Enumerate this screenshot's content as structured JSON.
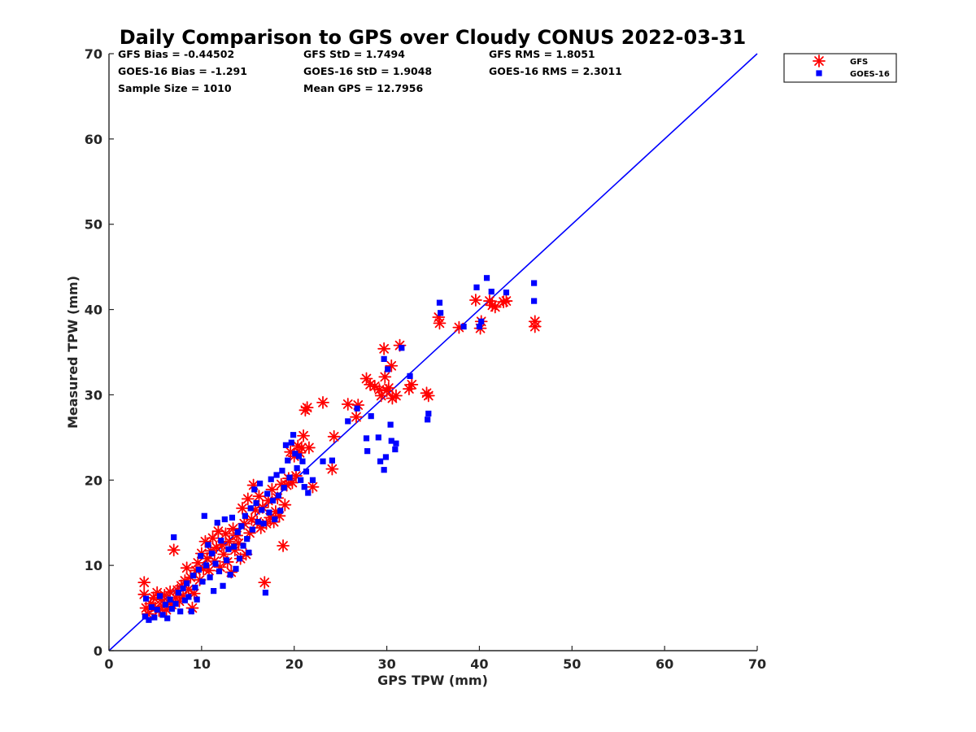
{
  "chart_data": {
    "type": "scatter",
    "title": "Daily Comparison to GPS over Cloudy CONUS 2022-03-31",
    "xlabel": "GPS TPW (mm)",
    "ylabel": "Measured TPW (mm)",
    "xlim": [
      0,
      70
    ],
    "ylim": [
      0,
      70
    ],
    "x_ticks": [
      "0",
      "10",
      "20",
      "30",
      "40",
      "50",
      "60",
      "70"
    ],
    "y_ticks": [
      "0",
      "10",
      "20",
      "30",
      "40",
      "50",
      "60",
      "70"
    ],
    "grid": false,
    "legend_placement": "outside-top-right",
    "reference_line": {
      "type": "1:1",
      "color": "#0000ff",
      "points": [
        [
          0,
          0
        ],
        [
          70,
          70
        ]
      ]
    },
    "stats": [
      "GFS Bias = -0.44502",
      "GFS StD = 1.7494",
      "GFS RMS = 1.8051",
      "GOES-16 Bias = -1.291",
      "GOES-16 StD = 1.9048",
      "GOES-16 RMS = 2.3011",
      "Sample Size = 1010",
      "Mean GPS = 12.7956"
    ],
    "series": [
      {
        "name": "GFS",
        "marker": "asterisk",
        "color": "#ff0000",
        "points": [
          [
            3.8,
            8.0
          ],
          [
            3.8,
            6.6
          ],
          [
            4.0,
            5.0
          ],
          [
            4.2,
            4.3
          ],
          [
            4.5,
            5.5
          ],
          [
            4.8,
            6.2
          ],
          [
            5.0,
            5.0
          ],
          [
            5.2,
            6.8
          ],
          [
            5.4,
            4.7
          ],
          [
            5.6,
            6.0
          ],
          [
            5.8,
            5.2
          ],
          [
            6.0,
            6.5
          ],
          [
            6.2,
            4.8
          ],
          [
            6.4,
            5.7
          ],
          [
            6.6,
            6.9
          ],
          [
            6.8,
            5.4
          ],
          [
            7.0,
            11.8
          ],
          [
            7.2,
            6.2
          ],
          [
            7.4,
            7.1
          ],
          [
            7.6,
            5.8
          ],
          [
            7.8,
            7.6
          ],
          [
            8.0,
            6.4
          ],
          [
            8.2,
            8.2
          ],
          [
            8.4,
            9.7
          ],
          [
            8.6,
            7.2
          ],
          [
            8.8,
            8.6
          ],
          [
            9.0,
            5.0
          ],
          [
            9.2,
            6.7
          ],
          [
            9.4,
            9.4
          ],
          [
            9.6,
            10.3
          ],
          [
            9.8,
            8.3
          ],
          [
            10.0,
            11.4
          ],
          [
            10.2,
            9.6
          ],
          [
            10.4,
            12.8
          ],
          [
            10.6,
            10.8
          ],
          [
            10.8,
            9.4
          ],
          [
            11.0,
            11.7
          ],
          [
            11.2,
            13.2
          ],
          [
            11.4,
            10.5
          ],
          [
            11.6,
            12.1
          ],
          [
            11.8,
            14.0
          ],
          [
            12.0,
            9.8
          ],
          [
            12.2,
            12.4
          ],
          [
            12.4,
            11.3
          ],
          [
            12.6,
            13.7
          ],
          [
            12.8,
            10.4
          ],
          [
            13.0,
            12.8
          ],
          [
            13.2,
            9.2
          ],
          [
            13.4,
            14.3
          ],
          [
            13.6,
            11.8
          ],
          [
            13.8,
            13.5
          ],
          [
            14.0,
            12.6
          ],
          [
            14.2,
            10.8
          ],
          [
            14.4,
            16.7
          ],
          [
            14.6,
            14.9
          ],
          [
            14.8,
            11.3
          ],
          [
            15.0,
            17.8
          ],
          [
            15.2,
            13.8
          ],
          [
            15.4,
            15.4
          ],
          [
            15.6,
            19.4
          ],
          [
            15.8,
            16.5
          ],
          [
            16.0,
            15.1
          ],
          [
            16.2,
            18.1
          ],
          [
            16.4,
            14.4
          ],
          [
            16.6,
            16.8
          ],
          [
            16.8,
            8.0
          ],
          [
            17.0,
            14.9
          ],
          [
            17.2,
            17.6
          ],
          [
            17.4,
            15.6
          ],
          [
            17.6,
            18.9
          ],
          [
            17.8,
            15.1
          ],
          [
            18.0,
            16.3
          ],
          [
            18.2,
            17.9
          ],
          [
            18.4,
            15.8
          ],
          [
            18.6,
            19.5
          ],
          [
            18.8,
            12.3
          ],
          [
            19.0,
            17.1
          ],
          [
            19.2,
            19.4
          ],
          [
            19.4,
            20.2
          ],
          [
            19.6,
            23.3
          ],
          [
            19.8,
            19.7
          ],
          [
            20.0,
            22.8
          ],
          [
            20.2,
            20.5
          ],
          [
            20.4,
            24.0
          ],
          [
            20.6,
            23.2
          ],
          [
            20.8,
            23.8
          ],
          [
            21.0,
            25.2
          ],
          [
            21.2,
            28.2
          ],
          [
            21.4,
            28.5
          ],
          [
            21.6,
            23.8
          ],
          [
            22.0,
            19.2
          ],
          [
            23.1,
            29.1
          ],
          [
            24.1,
            21.3
          ],
          [
            24.3,
            25.1
          ],
          [
            25.8,
            28.9
          ],
          [
            26.7,
            27.4
          ],
          [
            26.9,
            28.8
          ],
          [
            27.8,
            31.9
          ],
          [
            28.2,
            31.2
          ],
          [
            28.7,
            31.0
          ],
          [
            29.2,
            30.6
          ],
          [
            29.4,
            29.9
          ],
          [
            29.7,
            35.4
          ],
          [
            29.8,
            32.1
          ],
          [
            30.0,
            30.5
          ],
          [
            30.2,
            30.8
          ],
          [
            30.5,
            33.4
          ],
          [
            30.6,
            29.6
          ],
          [
            31.0,
            29.9
          ],
          [
            31.4,
            35.8
          ],
          [
            32.4,
            30.7
          ],
          [
            32.7,
            31.2
          ],
          [
            34.3,
            30.2
          ],
          [
            34.5,
            29.9
          ],
          [
            35.6,
            39.1
          ],
          [
            35.7,
            38.4
          ],
          [
            37.8,
            37.9
          ],
          [
            39.6,
            41.1
          ],
          [
            40.1,
            37.8
          ],
          [
            40.2,
            38.6
          ],
          [
            41.1,
            41.0
          ],
          [
            41.4,
            40.5
          ],
          [
            41.7,
            40.3
          ],
          [
            42.6,
            40.9
          ],
          [
            42.9,
            41.0
          ],
          [
            46.0,
            38.0
          ],
          [
            46.0,
            38.6
          ]
        ]
      },
      {
        "name": "GOES-16",
        "marker": "square",
        "color": "#0000ff",
        "points": [
          [
            3.9,
            4.0
          ],
          [
            4.0,
            6.1
          ],
          [
            4.3,
            3.6
          ],
          [
            4.6,
            5.1
          ],
          [
            4.9,
            3.9
          ],
          [
            5.2,
            4.8
          ],
          [
            5.5,
            6.4
          ],
          [
            5.8,
            4.2
          ],
          [
            6.1,
            5.4
          ],
          [
            6.3,
            3.8
          ],
          [
            6.6,
            6.0
          ],
          [
            6.8,
            4.9
          ],
          [
            7.0,
            13.3
          ],
          [
            7.2,
            5.5
          ],
          [
            7.5,
            6.8
          ],
          [
            7.7,
            4.6
          ],
          [
            8.0,
            7.3
          ],
          [
            8.2,
            5.9
          ],
          [
            8.4,
            7.9
          ],
          [
            8.6,
            6.3
          ],
          [
            8.9,
            4.6
          ],
          [
            9.1,
            8.8
          ],
          [
            9.3,
            7.4
          ],
          [
            9.5,
            6.0
          ],
          [
            9.7,
            9.5
          ],
          [
            9.9,
            11.1
          ],
          [
            10.1,
            8.1
          ],
          [
            10.3,
            15.8
          ],
          [
            10.5,
            10.0
          ],
          [
            10.7,
            12.4
          ],
          [
            10.9,
            8.6
          ],
          [
            11.1,
            11.4
          ],
          [
            11.3,
            7.0
          ],
          [
            11.5,
            10.2
          ],
          [
            11.7,
            15.0
          ],
          [
            11.9,
            9.3
          ],
          [
            12.1,
            12.9
          ],
          [
            12.3,
            7.6
          ],
          [
            12.5,
            15.4
          ],
          [
            12.7,
            10.6
          ],
          [
            12.9,
            11.9
          ],
          [
            13.1,
            8.9
          ],
          [
            13.3,
            15.6
          ],
          [
            13.5,
            12.2
          ],
          [
            13.7,
            9.6
          ],
          [
            13.9,
            13.9
          ],
          [
            14.1,
            10.8
          ],
          [
            14.3,
            14.6
          ],
          [
            14.5,
            12.3
          ],
          [
            14.7,
            15.8
          ],
          [
            14.9,
            13.1
          ],
          [
            15.1,
            11.5
          ],
          [
            15.3,
            16.7
          ],
          [
            15.5,
            14.2
          ],
          [
            15.7,
            18.9
          ],
          [
            15.9,
            17.3
          ],
          [
            16.1,
            15.1
          ],
          [
            16.3,
            19.6
          ],
          [
            16.5,
            16.5
          ],
          [
            16.7,
            14.9
          ],
          [
            16.9,
            6.8
          ],
          [
            17.1,
            18.4
          ],
          [
            17.3,
            16.2
          ],
          [
            17.5,
            20.1
          ],
          [
            17.7,
            17.6
          ],
          [
            17.9,
            15.4
          ],
          [
            18.1,
            20.6
          ],
          [
            18.3,
            18.2
          ],
          [
            18.5,
            16.4
          ],
          [
            18.7,
            21.1
          ],
          [
            18.9,
            19.1
          ],
          [
            19.1,
            24.1
          ],
          [
            19.3,
            22.3
          ],
          [
            19.5,
            20.3
          ],
          [
            19.7,
            24.4
          ],
          [
            19.9,
            25.3
          ],
          [
            20.1,
            23.1
          ],
          [
            20.3,
            21.4
          ],
          [
            20.5,
            22.8
          ],
          [
            20.7,
            20.0
          ],
          [
            20.9,
            22.2
          ],
          [
            21.1,
            19.2
          ],
          [
            21.3,
            21.0
          ],
          [
            21.5,
            18.5
          ],
          [
            22.0,
            20.0
          ],
          [
            23.1,
            22.2
          ],
          [
            24.1,
            22.3
          ],
          [
            25.8,
            26.9
          ],
          [
            26.8,
            28.4
          ],
          [
            27.8,
            24.9
          ],
          [
            27.9,
            23.4
          ],
          [
            28.3,
            27.5
          ],
          [
            29.1,
            25.0
          ],
          [
            29.3,
            22.2
          ],
          [
            29.7,
            34.2
          ],
          [
            29.7,
            21.2
          ],
          [
            29.9,
            22.7
          ],
          [
            30.1,
            33.0
          ],
          [
            30.4,
            26.5
          ],
          [
            30.5,
            24.6
          ],
          [
            30.9,
            23.6
          ],
          [
            31.0,
            24.3
          ],
          [
            31.6,
            35.5
          ],
          [
            32.5,
            32.2
          ],
          [
            34.4,
            27.1
          ],
          [
            34.5,
            27.8
          ],
          [
            35.7,
            40.8
          ],
          [
            35.8,
            39.6
          ],
          [
            38.3,
            38.0
          ],
          [
            39.7,
            42.6
          ],
          [
            40.0,
            38.0
          ],
          [
            40.2,
            38.6
          ],
          [
            40.8,
            43.7
          ],
          [
            41.3,
            42.1
          ],
          [
            42.9,
            42.0
          ],
          [
            45.9,
            43.1
          ],
          [
            45.9,
            41.0
          ]
        ]
      }
    ]
  }
}
